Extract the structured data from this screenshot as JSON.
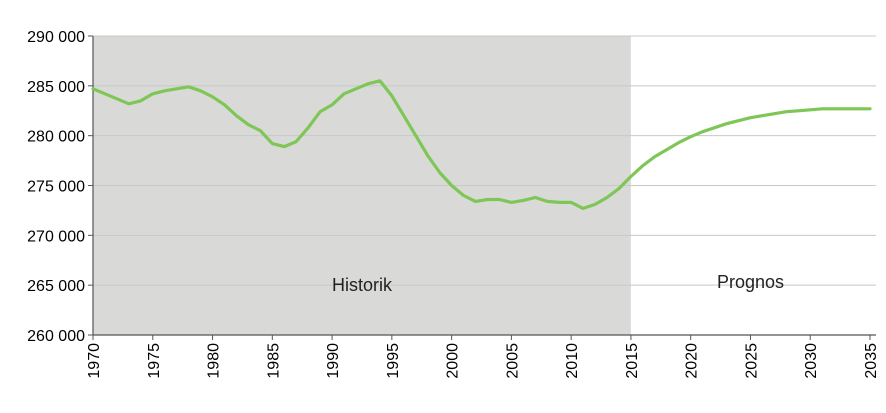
{
  "chart_data": {
    "type": "line",
    "title": "",
    "xlabel": "",
    "ylabel": "",
    "xlim": [
      1970,
      2035
    ],
    "ylim": [
      260000,
      290000
    ],
    "x_ticks": [
      "1970",
      "1975",
      "1980",
      "1985",
      "1990",
      "1995",
      "2000",
      "2005",
      "2010",
      "2015",
      "2020",
      "2025",
      "2030",
      "2035"
    ],
    "y_ticks": [
      "290 000",
      "285 000",
      "280 000",
      "275 000",
      "270 000",
      "265 000",
      "260 000"
    ],
    "regions": [
      {
        "label": "Historik",
        "from": 1970,
        "to": 2015,
        "color": "#d9dad8"
      },
      {
        "label": "Prognos",
        "from": 2015,
        "to": 2035,
        "color": "#ffffff"
      }
    ],
    "grid": true,
    "legend": "none",
    "series": [
      {
        "color": "#7ec656",
        "x": [
          1970,
          1971,
          1972,
          1973,
          1974,
          1975,
          1976,
          1977,
          1978,
          1979,
          1980,
          1981,
          1982,
          1983,
          1984,
          1985,
          1986,
          1987,
          1988,
          1989,
          1990,
          1991,
          1992,
          1993,
          1994,
          1995,
          1996,
          1997,
          1998,
          1999,
          2000,
          2001,
          2002,
          2003,
          2004,
          2005,
          2006,
          2007,
          2008,
          2009,
          2010,
          2011,
          2012,
          2013,
          2014,
          2015,
          2016,
          2017,
          2018,
          2019,
          2020,
          2021,
          2022,
          2023,
          2024,
          2025,
          2026,
          2027,
          2028,
          2029,
          2030,
          2031,
          2032,
          2033,
          2034,
          2035
        ],
        "values": [
          284700,
          284200,
          283700,
          283200,
          283500,
          284200,
          284500,
          284700,
          284900,
          284500,
          283900,
          283100,
          282000,
          281100,
          280500,
          279200,
          278900,
          279400,
          280800,
          282400,
          283100,
          284200,
          284700,
          285200,
          285500,
          284000,
          282000,
          280000,
          278000,
          276300,
          275000,
          274000,
          273400,
          273600,
          273600,
          273300,
          273500,
          273800,
          273400,
          273300,
          273300,
          272700,
          273100,
          273800,
          274700,
          275900,
          277000,
          277900,
          278600,
          279300,
          279900,
          280400,
          280800,
          281200,
          281500,
          281800,
          282000,
          282200,
          282400,
          282500,
          282600,
          282700,
          282700,
          282700,
          282700,
          282700
        ]
      }
    ]
  }
}
